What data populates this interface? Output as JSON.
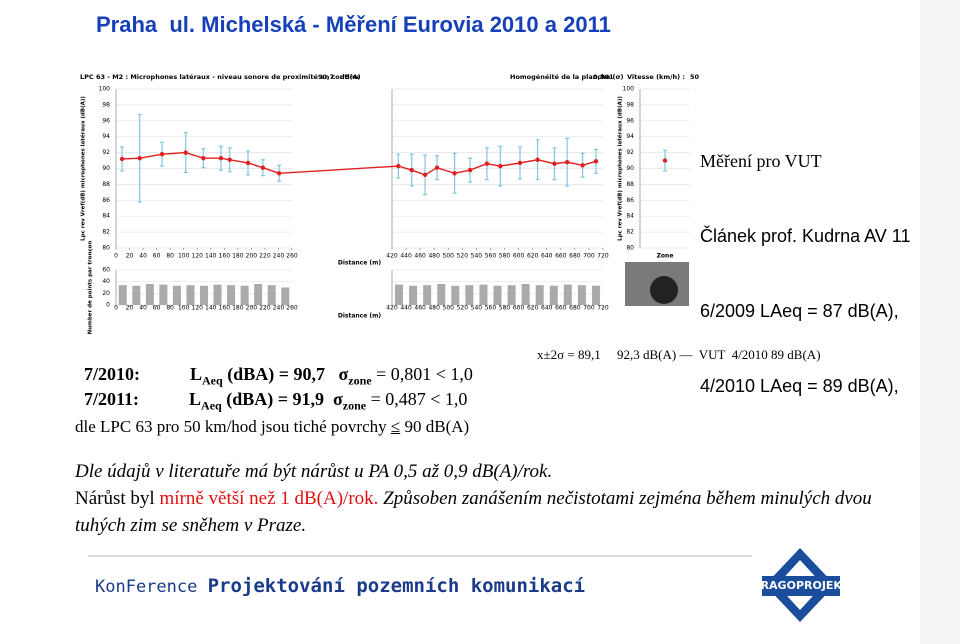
{
  "title": "Praha  ul. Michelská - Měření Eurovia 2010 a 2011",
  "side_note": [
    "Měření pro VUT",
    "Článek prof. Kudrna AV 11",
    "6/2009 LAeq = 87 dB(A),",
    "4/2010 LAeq = 89 dB(A),"
  ],
  "chart_data": [
    {
      "type": "line",
      "title": "LPC 63 - M2 : Microphones latéraux - niveau sonore de proximité en continu",
      "title_value": "90,7",
      "title_unit": "dB(A)",
      "homogeneity_label": "Homogénéité de la planche (σ)",
      "homogeneity_value": "0,801",
      "speed_label": "Vitesse (km/h) :",
      "speed_value": "50",
      "ylabel": "Lpc rev Vref(dB) microphones latéraux (dB(A))",
      "xlabel": "Distance (m)",
      "x": [
        9,
        35,
        68,
        103,
        129,
        155,
        168,
        195,
        217,
        241,
        429,
        448,
        467,
        484,
        509,
        531,
        555,
        574,
        602,
        627,
        651,
        669,
        691,
        710
      ],
      "values": [
        91.2,
        91.3,
        91.8,
        92.0,
        91.3,
        91.3,
        91.1,
        90.7,
        90.1,
        89.4,
        90.3,
        89.8,
        89.2,
        90.1,
        89.4,
        89.8,
        90.6,
        90.3,
        90.7,
        91.1,
        90.6,
        90.8,
        90.4,
        90.9
      ],
      "errors": [
        1.5,
        5.5,
        1.5,
        2.5,
        1.2,
        1.5,
        1.5,
        1.5,
        1,
        1,
        1.5,
        2,
        2.5,
        1.5,
        2.5,
        1.5,
        2,
        2.5,
        2,
        2.5,
        2,
        3,
        1.5,
        1.5
      ],
      "color": "#e02020",
      "error_color": "#7fc7e0",
      "xlim": [
        0,
        720
      ],
      "x_break": [
        260,
        420
      ],
      "xticks": [
        0,
        20,
        40,
        60,
        80,
        100,
        120,
        140,
        160,
        180,
        200,
        220,
        240,
        260,
        420,
        440,
        460,
        480,
        500,
        520,
        540,
        560,
        580,
        600,
        620,
        640,
        660,
        680,
        700,
        720
      ],
      "ylim": [
        80,
        100
      ],
      "yticks": [
        80,
        82,
        84,
        86,
        88,
        90,
        92,
        94,
        96,
        98,
        100
      ],
      "grid": true
    },
    {
      "type": "bar",
      "ylabel": "Number de points par tronçon",
      "xlabel": "Distance (m)",
      "x": [
        10,
        30,
        50,
        70,
        90,
        110,
        130,
        150,
        170,
        190,
        210,
        230,
        250,
        430,
        450,
        470,
        490,
        510,
        530,
        550,
        570,
        590,
        610,
        630,
        650,
        670,
        690,
        710
      ],
      "values": [
        34,
        33,
        36,
        35,
        33,
        34,
        33,
        35,
        34,
        33,
        36,
        34,
        30,
        35,
        33,
        34,
        36,
        33,
        34,
        35,
        33,
        34,
        36,
        34,
        33,
        35,
        34,
        33
      ],
      "color": "#aaaaaa",
      "xlim": [
        0,
        720
      ],
      "x_break": [
        260,
        420
      ],
      "xticks": [
        0,
        20,
        40,
        60,
        80,
        100,
        120,
        140,
        160,
        180,
        200,
        220,
        240,
        260,
        420,
        440,
        460,
        480,
        500,
        520,
        540,
        560,
        580,
        600,
        620,
        640,
        660,
        680,
        700,
        720
      ],
      "ylim": [
        0,
        60
      ],
      "yticks": [
        0,
        20,
        40,
        60
      ],
      "grid": true
    },
    {
      "type": "line",
      "ylabel": "Lpc rev Vref(dB) microphones latéraux (dB(A))",
      "categories": [
        "Zone"
      ],
      "values": [
        91.0
      ],
      "errors": [
        1.3
      ],
      "color": "#e02020",
      "error_color": "#7fc7e0",
      "ylim": [
        80,
        100
      ],
      "yticks": [
        80,
        82,
        84,
        86,
        88,
        90,
        92,
        94,
        96,
        98,
        100
      ],
      "grid": true
    }
  ],
  "results": [
    {
      "period": "7/2010:",
      "symbol": "L",
      "symbol_sub": "Aeq",
      "level": "(dBA) = 90,7",
      "sigma": "σ",
      "sigma_sub": "zone",
      "sigma_value": "= 0,801 < 1,0"
    },
    {
      "period": "7/2011:",
      "symbol": "L",
      "symbol_sub": "Aeq",
      "level": "(dBA) = 91,9",
      "sigma": "σ",
      "sigma_sub": "zone",
      "sigma_value": "= 0,487 < 1,0"
    }
  ],
  "comparison": "x±2σ = 89,1     92,3 dB(A) —  VUT  4/2010 89 dB(A)",
  "quiet_note": {
    "before": "dle LPC 63 pro 50 km/hod jsou tiché povrchy ",
    "symbol": "≤",
    "after": " 90 dB(A)"
  },
  "literature": "Dle údajů v literatuře má být nárůst u PA 0,5 až 0,9 dB(A)/rok.",
  "increase": {
    "lead": "Nárůst byl ",
    "highlight": "mírně větší než 1 dB(A)/rok.",
    "cause": " Způsoben zanášením nečistotami zejména během minulých dvou tuhých zim se sněhem v Praze."
  },
  "footer": {
    "conference": "KonFerence",
    "name": "Projektování pozemních komunikací",
    "logo": "PRAGOPROJEKT"
  }
}
